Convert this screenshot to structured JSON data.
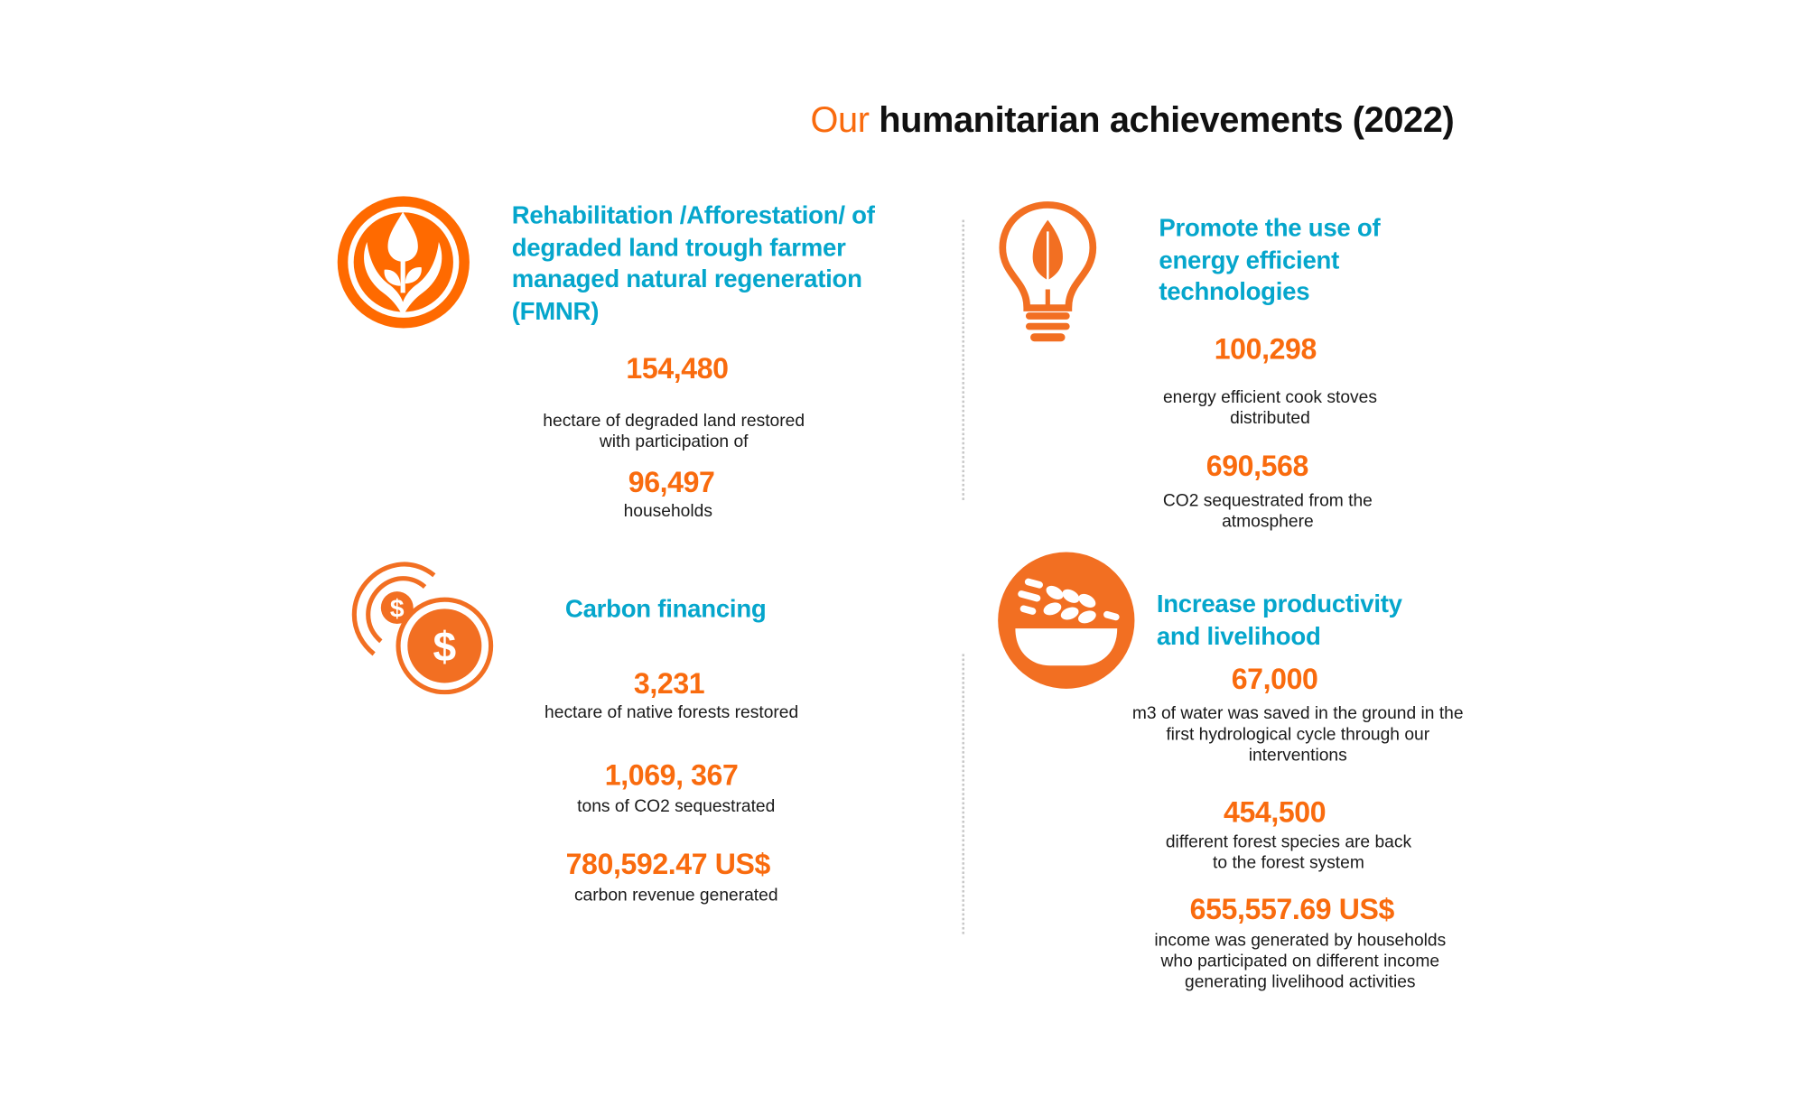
{
  "title": {
    "prefix": "Our",
    "main": "humanitarian achievements (2022)"
  },
  "colors": {
    "accent_orange": "#f96b0e",
    "heading_blue": "#05a6cc",
    "icon_orange": "#f26f22"
  },
  "sections": [
    {
      "icon": "hands-sprout-icon",
      "heading": "Rehabilitation /Afforestation/ of\ndegraded land trough farmer\nmanaged natural regeneration\n(FMNR)",
      "stats": [
        {
          "value": "154,480",
          "label": "hectare of degraded land restored\nwith participation of"
        },
        {
          "value": "96,497",
          "label": "households"
        }
      ]
    },
    {
      "icon": "lightbulb-leaf-icon",
      "heading": "Promote the use of\nenergy efficient\ntechnologies",
      "stats": [
        {
          "value": "100,298",
          "label": "energy efficient cook stoves\ndistributed"
        },
        {
          "value": "690,568",
          "label": "CO2 sequestrated from the\natmosphere"
        }
      ]
    },
    {
      "icon": "coins-dollar-icon",
      "heading": "Carbon financing",
      "stats": [
        {
          "value": "3,231",
          "label": "hectare of native forests restored"
        },
        {
          "value": "1,069, 367",
          "label": "tons of CO2 sequestrated"
        },
        {
          "value": "780,592.47 US$",
          "label": "carbon revenue generated"
        }
      ]
    },
    {
      "icon": "grain-bowl-icon",
      "heading": "Increase productivity\nand livelihood",
      "stats": [
        {
          "value": "67,000",
          "label": "m3 of water was saved in the ground in the\nfirst hydrological cycle through our\ninterventions"
        },
        {
          "value": "454,500",
          "label": "different forest species are back\nto the forest system"
        },
        {
          "value": "655,557.69 US$",
          "label": "income was generated by households\nwho participated on different income\ngenerating livelihood activities"
        }
      ]
    }
  ]
}
